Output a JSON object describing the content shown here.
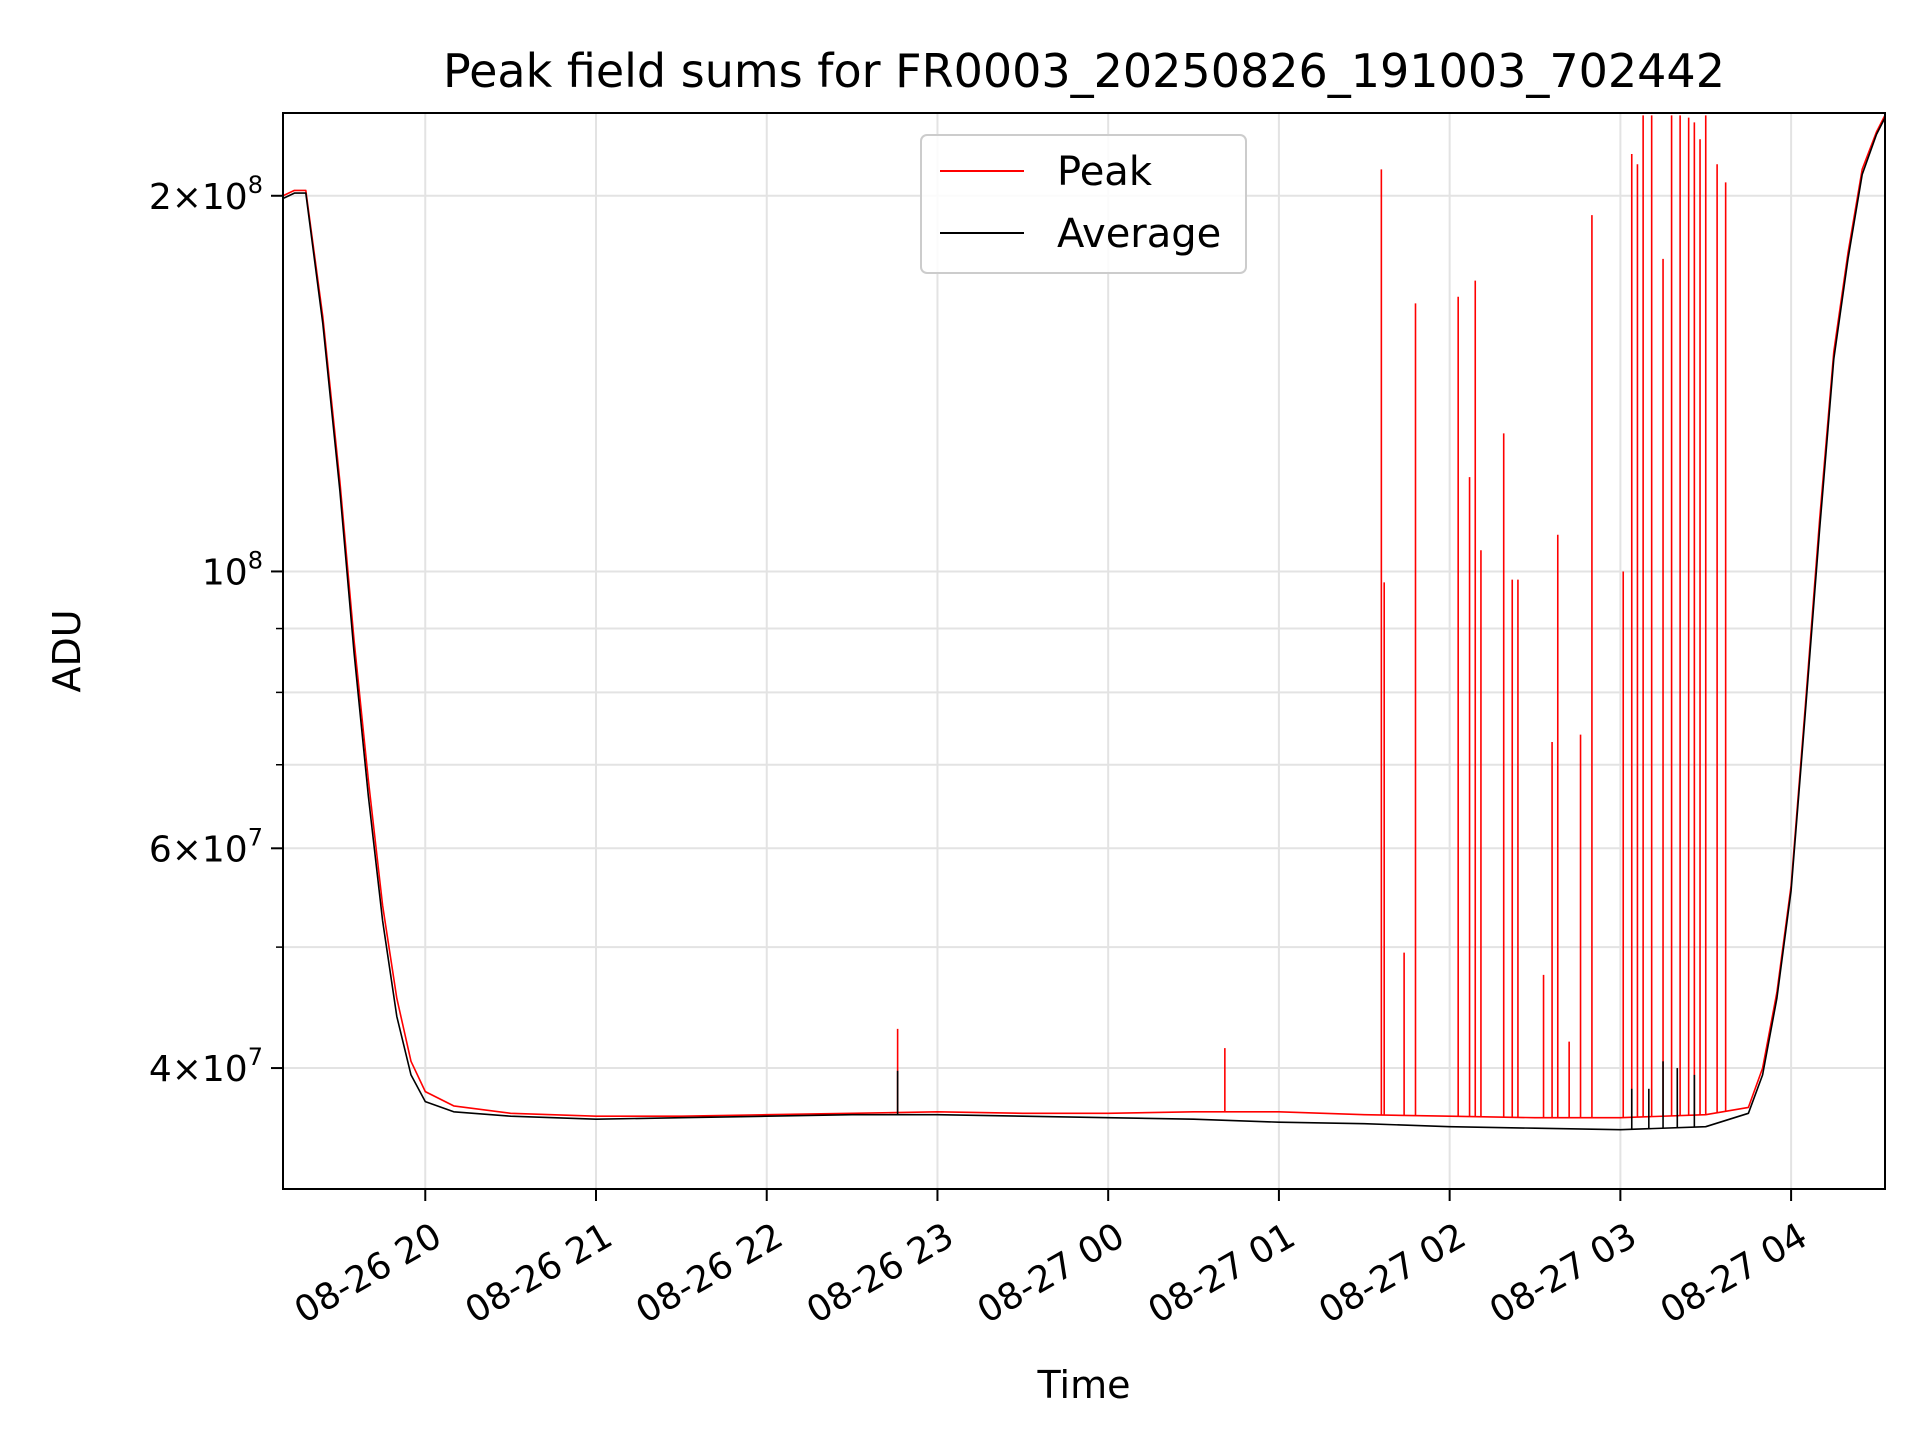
{
  "chart_data": {
    "type": "line",
    "title": "Peak field sums for FR0003_20250826_191003_702442",
    "xlabel": "Time",
    "ylabel": "ADU",
    "x_type": "datetime",
    "xlim": [
      "2025-08-26 19:10",
      "2025-08-27 04:33"
    ],
    "ylim": [
      32000000,
      233000000
    ],
    "yscale": "log",
    "grid": true,
    "legend_position": "upper center",
    "x_ticks": [
      {
        "value": "2025-08-26 20:00",
        "label": "08-26 20"
      },
      {
        "value": "2025-08-26 21:00",
        "label": "08-26 21"
      },
      {
        "value": "2025-08-26 22:00",
        "label": "08-26 22"
      },
      {
        "value": "2025-08-26 23:00",
        "label": "08-26 23"
      },
      {
        "value": "2025-08-27 00:00",
        "label": "08-27 00"
      },
      {
        "value": "2025-08-27 01:00",
        "label": "08-27 01"
      },
      {
        "value": "2025-08-27 02:00",
        "label": "08-27 02"
      },
      {
        "value": "2025-08-27 03:00",
        "label": "08-27 03"
      },
      {
        "value": "2025-08-27 04:00",
        "label": "08-27 04"
      }
    ],
    "y_ticks": [
      {
        "value": 40000000,
        "mant": "4",
        "exp": "7"
      },
      {
        "value": 60000000,
        "mant": "6",
        "exp": "7"
      },
      {
        "value": 100000000,
        "mant": "",
        "exp": "8"
      },
      {
        "value": 200000000,
        "mant": "2",
        "exp": "8"
      }
    ],
    "y_minor_ticks": [
      50000000,
      70000000,
      80000000,
      90000000
    ],
    "series": [
      {
        "name": "Peak",
        "color": "#ff0000",
        "base": [
          [
            "2025-08-26 19:10",
            200000000
          ],
          [
            "2025-08-26 19:14",
            202000000
          ],
          [
            "2025-08-26 19:18",
            202000000
          ],
          [
            "2025-08-26 19:24",
            160000000
          ],
          [
            "2025-08-26 19:30",
            118000000
          ],
          [
            "2025-08-26 19:35",
            88000000
          ],
          [
            "2025-08-26 19:40",
            68000000
          ],
          [
            "2025-08-26 19:45",
            54000000
          ],
          [
            "2025-08-26 19:50",
            45500000
          ],
          [
            "2025-08-26 19:55",
            40500000
          ],
          [
            "2025-08-26 20:00",
            38300000
          ],
          [
            "2025-08-26 20:10",
            37300000
          ],
          [
            "2025-08-26 20:30",
            36800000
          ],
          [
            "2025-08-26 21:00",
            36600000
          ],
          [
            "2025-08-26 21:30",
            36600000
          ],
          [
            "2025-08-26 22:00",
            36700000
          ],
          [
            "2025-08-26 22:30",
            36800000
          ],
          [
            "2025-08-26 23:00",
            36900000
          ],
          [
            "2025-08-26 23:30",
            36800000
          ],
          [
            "2025-08-27 00:00",
            36800000
          ],
          [
            "2025-08-27 00:30",
            36900000
          ],
          [
            "2025-08-27 01:00",
            36900000
          ],
          [
            "2025-08-27 01:30",
            36700000
          ],
          [
            "2025-08-27 02:00",
            36600000
          ],
          [
            "2025-08-27 02:30",
            36500000
          ],
          [
            "2025-08-27 03:00",
            36500000
          ],
          [
            "2025-08-27 03:30",
            36700000
          ],
          [
            "2025-08-27 03:45",
            37200000
          ],
          [
            "2025-08-27 03:50",
            40000000
          ],
          [
            "2025-08-27 03:55",
            46000000
          ],
          [
            "2025-08-27 04:00",
            56000000
          ],
          [
            "2025-08-27 04:05",
            78000000
          ],
          [
            "2025-08-27 04:10",
            110000000
          ],
          [
            "2025-08-27 04:15",
            150000000
          ],
          [
            "2025-08-27 04:20",
            180000000
          ],
          [
            "2025-08-27 04:25",
            210000000
          ],
          [
            "2025-08-27 04:30",
            225000000
          ],
          [
            "2025-08-27 04:33",
            232000000
          ]
        ],
        "spikes": [
          [
            "2025-08-26 22:46",
            43000000
          ],
          [
            "2025-08-27 00:41",
            41500000
          ],
          [
            "2025-08-27 01:36",
            210000000
          ],
          [
            "2025-08-27 01:37",
            98000000
          ],
          [
            "2025-08-27 01:44",
            49500000
          ],
          [
            "2025-08-27 01:48",
            164000000
          ],
          [
            "2025-08-27 02:03",
            166000000
          ],
          [
            "2025-08-27 02:07",
            119000000
          ],
          [
            "2025-08-27 02:09",
            171000000
          ],
          [
            "2025-08-27 02:11",
            104000000
          ],
          [
            "2025-08-27 02:19",
            129000000
          ],
          [
            "2025-08-27 02:22",
            98500000
          ],
          [
            "2025-08-27 02:24",
            98500000
          ],
          [
            "2025-08-27 02:33",
            47500000
          ],
          [
            "2025-08-27 02:36",
            73000000
          ],
          [
            "2025-08-27 02:38",
            107000000
          ],
          [
            "2025-08-27 02:42",
            42000000
          ],
          [
            "2025-08-27 02:46",
            74000000
          ],
          [
            "2025-08-27 02:50",
            193000000
          ],
          [
            "2025-08-27 03:01",
            100000000
          ],
          [
            "2025-08-27 03:04",
            216000000
          ],
          [
            "2025-08-27 03:06",
            212000000
          ],
          [
            "2025-08-27 03:08",
            232000000
          ],
          [
            "2025-08-27 03:11",
            232000000
          ],
          [
            "2025-08-27 03:15",
            178000000
          ],
          [
            "2025-08-27 03:18",
            232000000
          ],
          [
            "2025-08-27 03:21",
            232000000
          ],
          [
            "2025-08-27 03:24",
            231000000
          ],
          [
            "2025-08-27 03:26",
            229000000
          ],
          [
            "2025-08-27 03:28",
            222000000
          ],
          [
            "2025-08-27 03:30",
            232000000
          ],
          [
            "2025-08-27 03:34",
            212000000
          ],
          [
            "2025-08-27 03:37",
            205000000
          ]
        ]
      },
      {
        "name": "Average",
        "color": "#000000",
        "base": [
          [
            "2025-08-26 19:10",
            199000000
          ],
          [
            "2025-08-26 19:14",
            201000000
          ],
          [
            "2025-08-26 19:18",
            201000000
          ],
          [
            "2025-08-26 19:24",
            158000000
          ],
          [
            "2025-08-26 19:30",
            116000000
          ],
          [
            "2025-08-26 19:35",
            86000000
          ],
          [
            "2025-08-26 19:40",
            66000000
          ],
          [
            "2025-08-26 19:45",
            52500000
          ],
          [
            "2025-08-26 19:50",
            44000000
          ],
          [
            "2025-08-26 19:55",
            39500000
          ],
          [
            "2025-08-26 20:00",
            37600000
          ],
          [
            "2025-08-26 20:10",
            36900000
          ],
          [
            "2025-08-26 20:30",
            36600000
          ],
          [
            "2025-08-26 21:00",
            36400000
          ],
          [
            "2025-08-26 21:30",
            36500000
          ],
          [
            "2025-08-26 22:00",
            36600000
          ],
          [
            "2025-08-26 22:30",
            36700000
          ],
          [
            "2025-08-26 23:00",
            36700000
          ],
          [
            "2025-08-26 23:30",
            36600000
          ],
          [
            "2025-08-27 00:00",
            36500000
          ],
          [
            "2025-08-27 00:30",
            36400000
          ],
          [
            "2025-08-27 01:00",
            36200000
          ],
          [
            "2025-08-27 01:30",
            36100000
          ],
          [
            "2025-08-27 02:00",
            35900000
          ],
          [
            "2025-08-27 02:30",
            35800000
          ],
          [
            "2025-08-27 03:00",
            35700000
          ],
          [
            "2025-08-27 03:30",
            35900000
          ],
          [
            "2025-08-27 03:45",
            36800000
          ],
          [
            "2025-08-27 03:50",
            39500000
          ],
          [
            "2025-08-27 03:55",
            45500000
          ],
          [
            "2025-08-27 04:00",
            55500000
          ],
          [
            "2025-08-27 04:05",
            77000000
          ],
          [
            "2025-08-27 04:10",
            108000000
          ],
          [
            "2025-08-27 04:15",
            148000000
          ],
          [
            "2025-08-27 04:20",
            178000000
          ],
          [
            "2025-08-27 04:25",
            208000000
          ],
          [
            "2025-08-27 04:30",
            224000000
          ],
          [
            "2025-08-27 04:33",
            231000000
          ]
        ],
        "spikes": [
          [
            "2025-08-26 22:46",
            39800000
          ],
          [
            "2025-08-27 03:04",
            38500000
          ],
          [
            "2025-08-27 03:10",
            38500000
          ],
          [
            "2025-08-27 03:15",
            40500000
          ],
          [
            "2025-08-27 03:20",
            40000000
          ],
          [
            "2025-08-27 03:26",
            39500000
          ]
        ]
      }
    ]
  }
}
